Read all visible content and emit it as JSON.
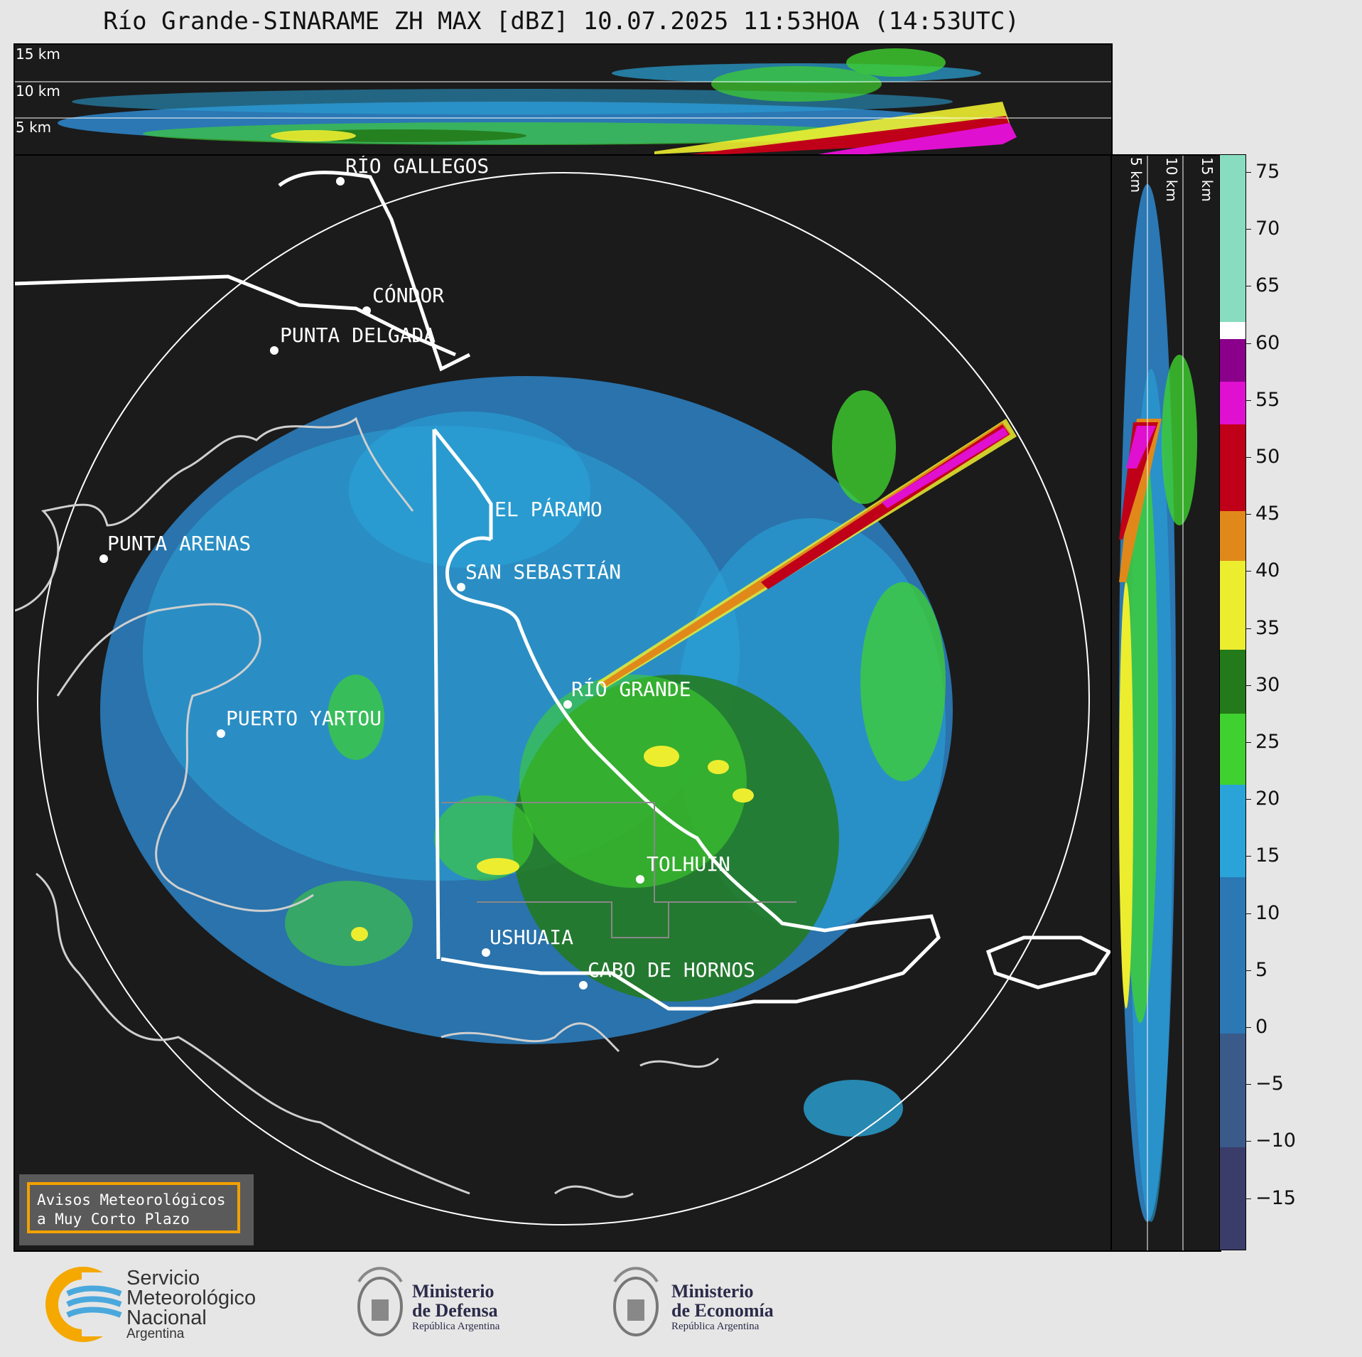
{
  "title": "Río Grande-SINARAME ZH MAX [dBZ] 10.07.2025 11:53HOA (14:53UTC)",
  "top_panel": {
    "height_labels": [
      "15 km",
      "10 km",
      "5 km"
    ]
  },
  "side_panel": {
    "height_labels": [
      "5 km",
      "10 km",
      "15 km"
    ]
  },
  "map": {
    "places": [
      {
        "name": "RÍO GALLEGOS"
      },
      {
        "name": "CÓNDOR"
      },
      {
        "name": "PUNTA DELGADA"
      },
      {
        "name": "EL PÁRAMO"
      },
      {
        "name": "PUNTA ARENAS"
      },
      {
        "name": "SAN SEBASTIÁN"
      },
      {
        "name": "RÍO GRANDE"
      },
      {
        "name": "PUERTO YARTOU"
      },
      {
        "name": "TOLHUIN"
      },
      {
        "name": "USHUAIA"
      },
      {
        "name": "CABO DE HORNOS"
      }
    ]
  },
  "colorbar": {
    "unit": "dBZ",
    "ticks": [
      "75",
      "70",
      "65",
      "60",
      "55",
      "50",
      "45",
      "40",
      "35",
      "30",
      "25",
      "20",
      "15",
      "10",
      "5",
      "0",
      "−5",
      "−10",
      "−15"
    ],
    "colors": {
      "light_blue": "#2aa4d8",
      "mid_blue": "#2b78b4",
      "green": "#3fd12f",
      "dark_green": "#237a1a",
      "yellow": "#eded30",
      "orange": "#e0891a",
      "red": "#c00018",
      "magenta": "#e010d0",
      "purple": "#8a008a",
      "mint": "#88dcc0"
    }
  },
  "notice": {
    "line1": "Avisos Meteorológicos",
    "line2": "a Muy Corto Plazo"
  },
  "logos": {
    "smn": {
      "line1": "Servicio",
      "line2": "Meteorológico",
      "line3": "Nacional",
      "line4": "Argentina"
    },
    "defensa": {
      "line1": "Ministerio",
      "line2": "de Defensa",
      "line3": "República Argentina"
    },
    "economia": {
      "line1": "Ministerio",
      "line2": "de Economía",
      "line3": "República Argentina"
    }
  }
}
